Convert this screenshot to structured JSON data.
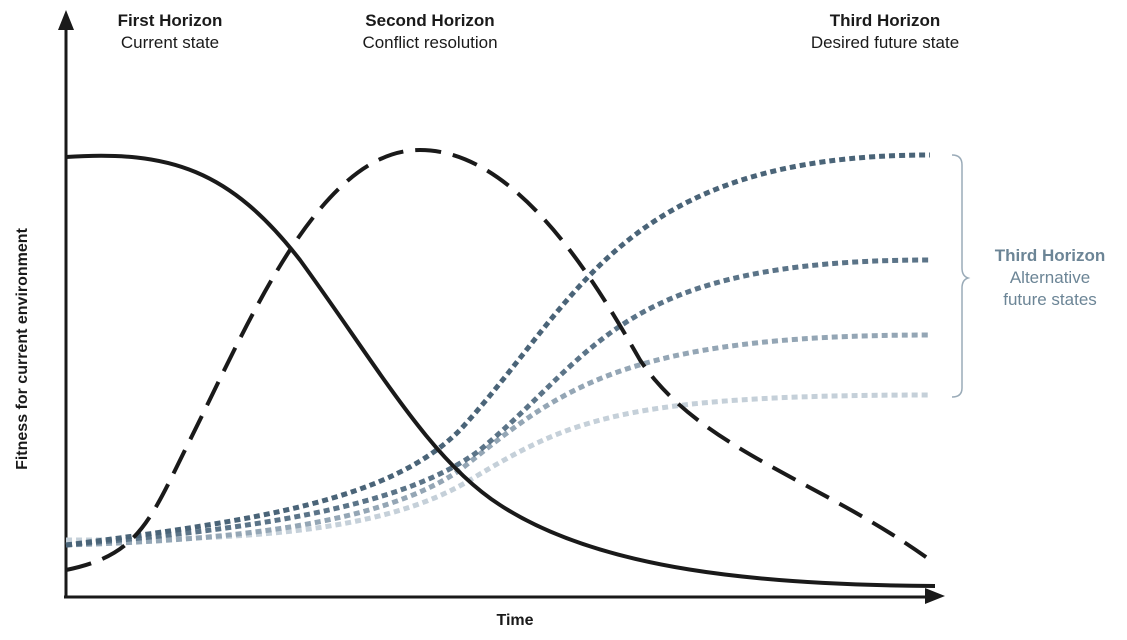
{
  "horizons": [
    {
      "title": "First Horizon",
      "subtitle": "Current state"
    },
    {
      "title": "Second Horizon",
      "subtitle": "Conflict resolution"
    },
    {
      "title": "Third Horizon",
      "subtitle": "Desired future state"
    }
  ],
  "alternatives_label": {
    "title": "Third Horizon",
    "line1": "Alternative",
    "line2": "future states"
  },
  "axes": {
    "x_label": "Time",
    "y_label": "Fitness for current environment"
  },
  "colors": {
    "axis": "#1a1a1a",
    "first_horizon": "#1a1a1a",
    "second_horizon": "#1a1a1a",
    "third_horizon_strong": "#4a6478",
    "third_horizon_mid": "#5b7488",
    "third_horizon_light": "#94a6b5",
    "third_horizon_faint": "#c5d0d9",
    "bracket": "#9aabb8",
    "alt_label": "#6c8596"
  }
}
